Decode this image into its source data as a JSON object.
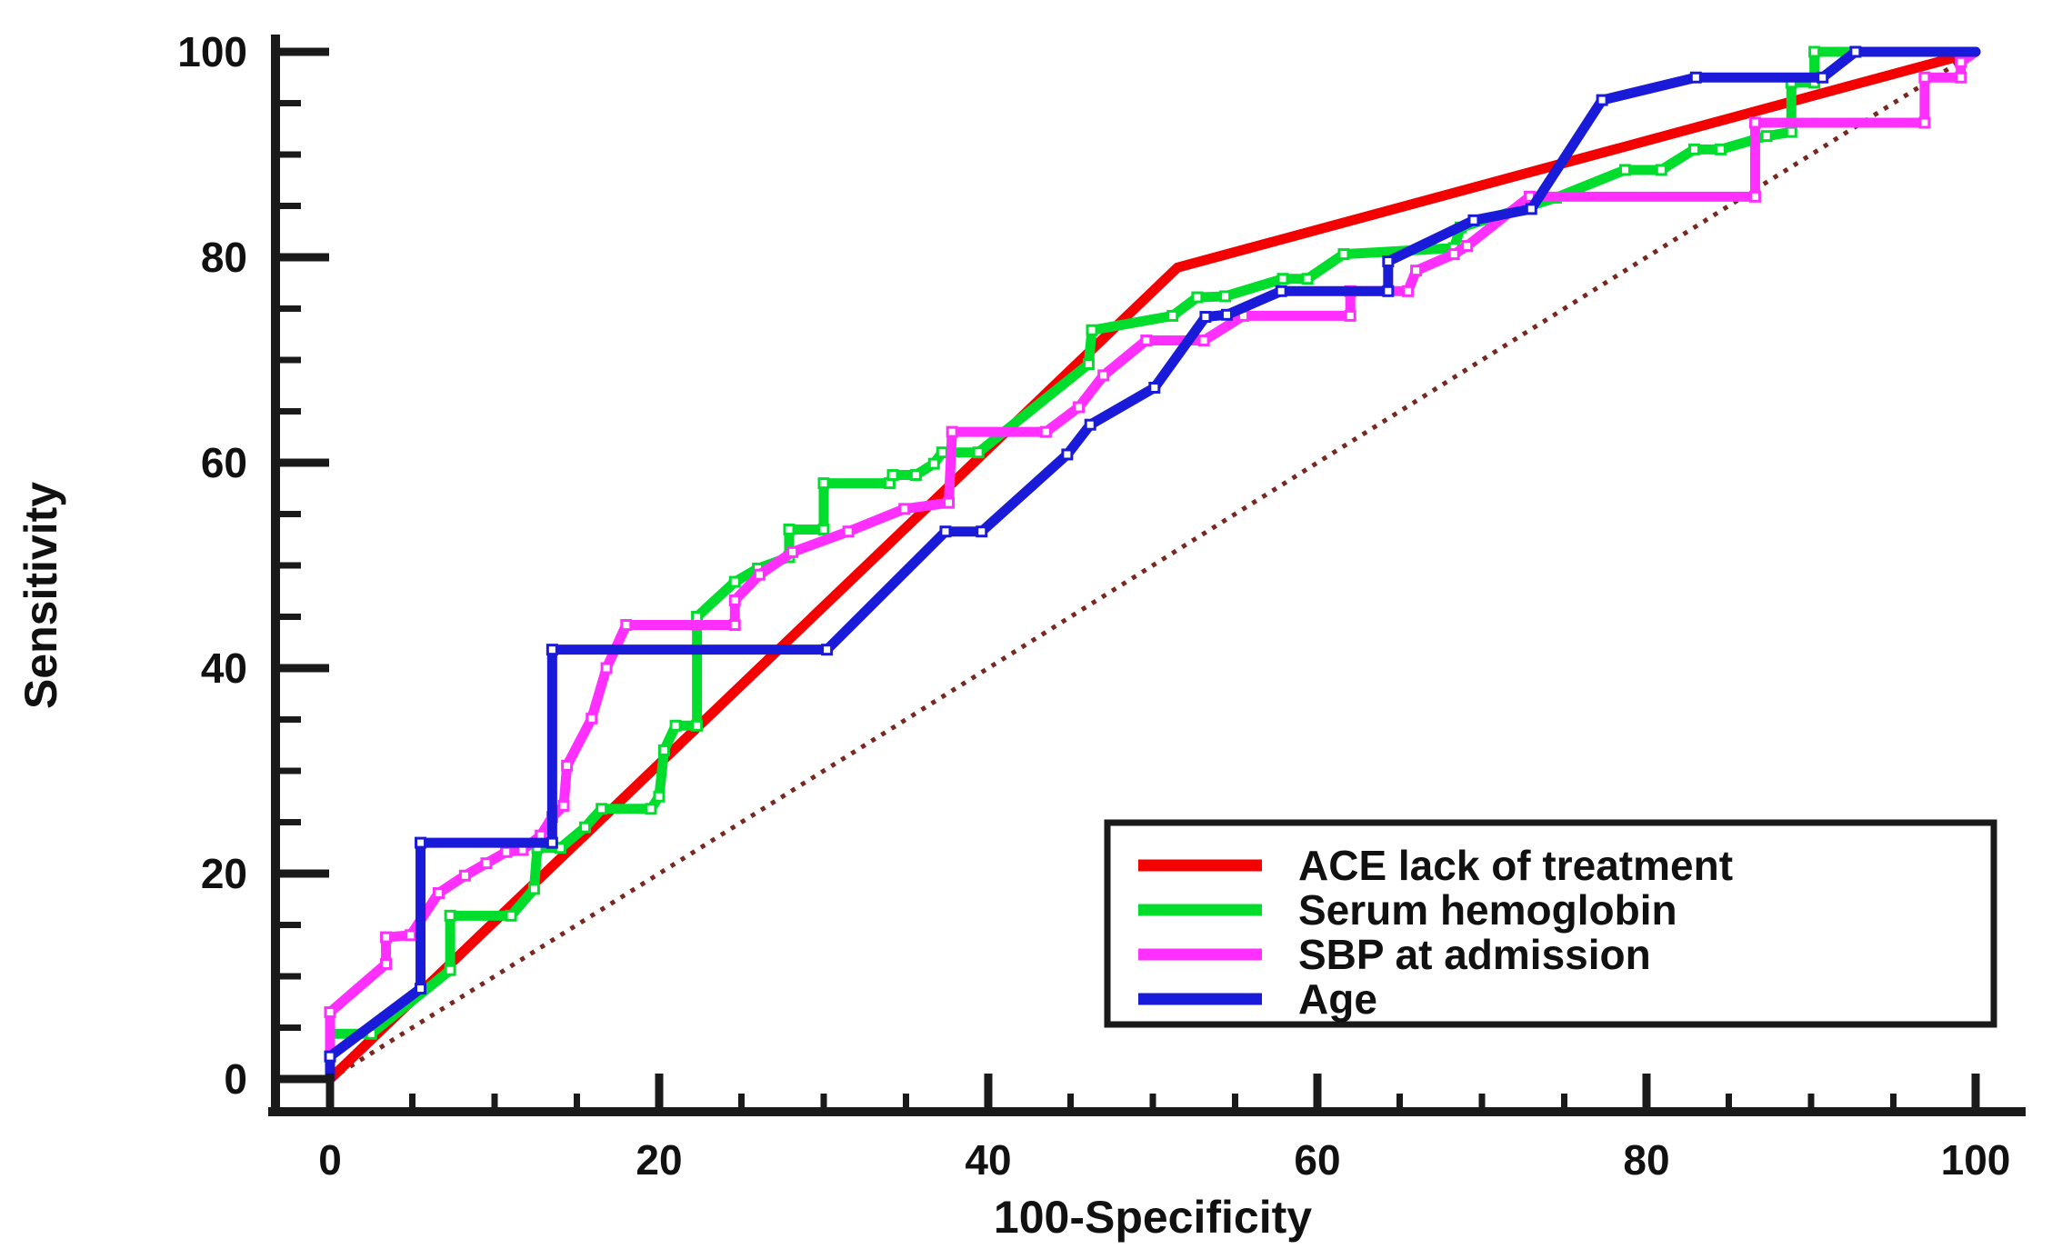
{
  "chart_data": {
    "type": "line",
    "subtype": "roc-curves",
    "title": "",
    "xlabel": "100-Specificity",
    "ylabel": "Sensitivity",
    "xlim": [
      0,
      100
    ],
    "ylim": [
      0,
      100
    ],
    "x_ticks_major": [
      0,
      20,
      40,
      60,
      80,
      100
    ],
    "y_ticks_major": [
      0,
      20,
      40,
      60,
      80,
      100
    ],
    "minor_tick_step": 5,
    "grid": false,
    "legend_position": "bottom-right",
    "axis_color": "#1a1a1a",
    "reference_line": {
      "name": "chance-diagonal",
      "style": "dotted",
      "color": "#7a2720",
      "points": [
        [
          0,
          0
        ],
        [
          100,
          100
        ]
      ]
    },
    "series": [
      {
        "name": "ACE lack of treatment",
        "color": "#f40000",
        "marker": false,
        "points": [
          [
            0,
            0
          ],
          [
            51.5,
            79
          ],
          [
            100,
            100
          ]
        ]
      },
      {
        "name": "Serum hemoglobin",
        "color": "#00dd2c",
        "marker": true,
        "points": [
          [
            0,
            4.4
          ],
          [
            2.5,
            4.4
          ],
          [
            7.3,
            10.6
          ],
          [
            7.3,
            15.9
          ],
          [
            11,
            15.9
          ],
          [
            12.4,
            18.5
          ],
          [
            12.6,
            22.5
          ],
          [
            14,
            22.5
          ],
          [
            15.5,
            24.5
          ],
          [
            16.5,
            26.3
          ],
          [
            19.5,
            26.3
          ],
          [
            20,
            27.5
          ],
          [
            20.3,
            32
          ],
          [
            21,
            34.4
          ],
          [
            22.3,
            34.4
          ],
          [
            22.3,
            45
          ],
          [
            24.6,
            48.4
          ],
          [
            26,
            49.7
          ],
          [
            27.9,
            50.8
          ],
          [
            27.9,
            53.5
          ],
          [
            30,
            53.5
          ],
          [
            30,
            58
          ],
          [
            34,
            58
          ],
          [
            34.2,
            58.8
          ],
          [
            35.6,
            58.8
          ],
          [
            36.7,
            59.9
          ],
          [
            37.2,
            61
          ],
          [
            39.4,
            61
          ],
          [
            46.1,
            69.6
          ],
          [
            46.3,
            72.9
          ],
          [
            51.2,
            74.3
          ],
          [
            52.7,
            76.1
          ],
          [
            54.4,
            76.2
          ],
          [
            57.9,
            77.9
          ],
          [
            59.4,
            77.9
          ],
          [
            61.6,
            80.3
          ],
          [
            68.3,
            80.9
          ],
          [
            68.7,
            82.9
          ],
          [
            74.5,
            85.8
          ],
          [
            78.7,
            88.5
          ],
          [
            80.9,
            88.5
          ],
          [
            82.9,
            90.5
          ],
          [
            84.5,
            90.5
          ],
          [
            87.3,
            91.8
          ],
          [
            88.8,
            92.2
          ],
          [
            88.8,
            97
          ],
          [
            90.2,
            97
          ],
          [
            90.2,
            100
          ],
          [
            100,
            100
          ]
        ]
      },
      {
        "name": "SBP at admission",
        "color": "#ff30ff",
        "marker": true,
        "points": [
          [
            0,
            0
          ],
          [
            0,
            6.5
          ],
          [
            3.4,
            11.2
          ],
          [
            3.4,
            13.8
          ],
          [
            4.9,
            14
          ],
          [
            6.6,
            18.1
          ],
          [
            8.2,
            19.8
          ],
          [
            9.5,
            21
          ],
          [
            10.7,
            22.1
          ],
          [
            11.7,
            22.3
          ],
          [
            12.8,
            23.7
          ],
          [
            13.5,
            25.5
          ],
          [
            14.2,
            26.6
          ],
          [
            14.4,
            30.5
          ],
          [
            15.9,
            35.1
          ],
          [
            16.8,
            40
          ],
          [
            18,
            44.2
          ],
          [
            24.6,
            44.2
          ],
          [
            24.6,
            46.6
          ],
          [
            26.1,
            49.1
          ],
          [
            28.1,
            51.3
          ],
          [
            31.5,
            53.3
          ],
          [
            34.9,
            55.5
          ],
          [
            37.6,
            56.1
          ],
          [
            37.8,
            63
          ],
          [
            43.5,
            63
          ],
          [
            45.5,
            65.4
          ],
          [
            47,
            68.5
          ],
          [
            49.6,
            71.9
          ],
          [
            53.1,
            71.9
          ],
          [
            55.5,
            74.3
          ],
          [
            62,
            74.3
          ],
          [
            62,
            76.7
          ],
          [
            65.5,
            76.7
          ],
          [
            66,
            78.7
          ],
          [
            68.3,
            80.3
          ],
          [
            69.1,
            81.1
          ],
          [
            72.9,
            85.9
          ],
          [
            86.6,
            85.9
          ],
          [
            86.6,
            93.1
          ],
          [
            96.9,
            93.1
          ],
          [
            96.9,
            97.5
          ],
          [
            99.1,
            97.5
          ],
          [
            99.1,
            99
          ],
          [
            100,
            100
          ]
        ]
      },
      {
        "name": "Age",
        "color": "#1a1ad9",
        "marker": true,
        "points": [
          [
            0,
            0
          ],
          [
            0,
            2.2
          ],
          [
            5.5,
            8.8
          ],
          [
            5.5,
            23
          ],
          [
            13.5,
            23
          ],
          [
            13.5,
            41.8
          ],
          [
            30.2,
            41.8
          ],
          [
            37.4,
            53.3
          ],
          [
            39.6,
            53.3
          ],
          [
            44.8,
            60.8
          ],
          [
            46.2,
            63.7
          ],
          [
            50.1,
            67.3
          ],
          [
            53.2,
            74.2
          ],
          [
            54.5,
            74.4
          ],
          [
            57.8,
            76.7
          ],
          [
            64.3,
            76.7
          ],
          [
            64.3,
            79.6
          ],
          [
            69.5,
            83.6
          ],
          [
            73,
            84.7
          ],
          [
            77.3,
            95.3
          ],
          [
            83,
            97.5
          ],
          [
            90.7,
            97.5
          ],
          [
            92.7,
            100
          ],
          [
            100,
            100
          ]
        ]
      }
    ]
  },
  "axis_tick_labels": {
    "x": [
      "0",
      "20",
      "40",
      "60",
      "80",
      "100"
    ],
    "y": [
      "0",
      "20",
      "40",
      "60",
      "80",
      "100"
    ]
  }
}
